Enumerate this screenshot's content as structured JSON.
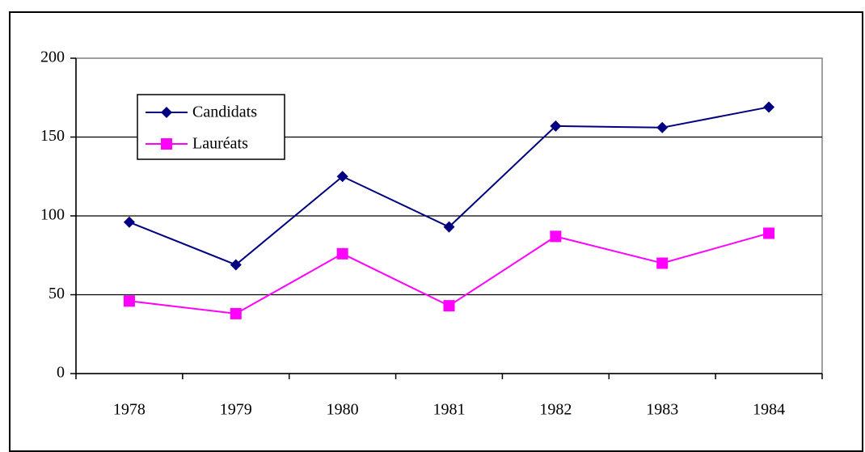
{
  "chart_data": {
    "type": "line",
    "categories": [
      "1978",
      "1979",
      "1980",
      "1981",
      "1982",
      "1983",
      "1984"
    ],
    "series": [
      {
        "name": "Candidats",
        "color": "#000080",
        "marker": "diamond",
        "values": [
          96,
          69,
          125,
          93,
          157,
          156,
          169
        ]
      },
      {
        "name": "Lauréats",
        "color": "#ff00ff",
        "marker": "square",
        "values": [
          46,
          38,
          76,
          43,
          87,
          70,
          89
        ]
      }
    ],
    "ylim": [
      0,
      200
    ],
    "yticks": [
      0,
      50,
      100,
      150,
      200
    ],
    "grid": true,
    "legend": "upper left"
  }
}
